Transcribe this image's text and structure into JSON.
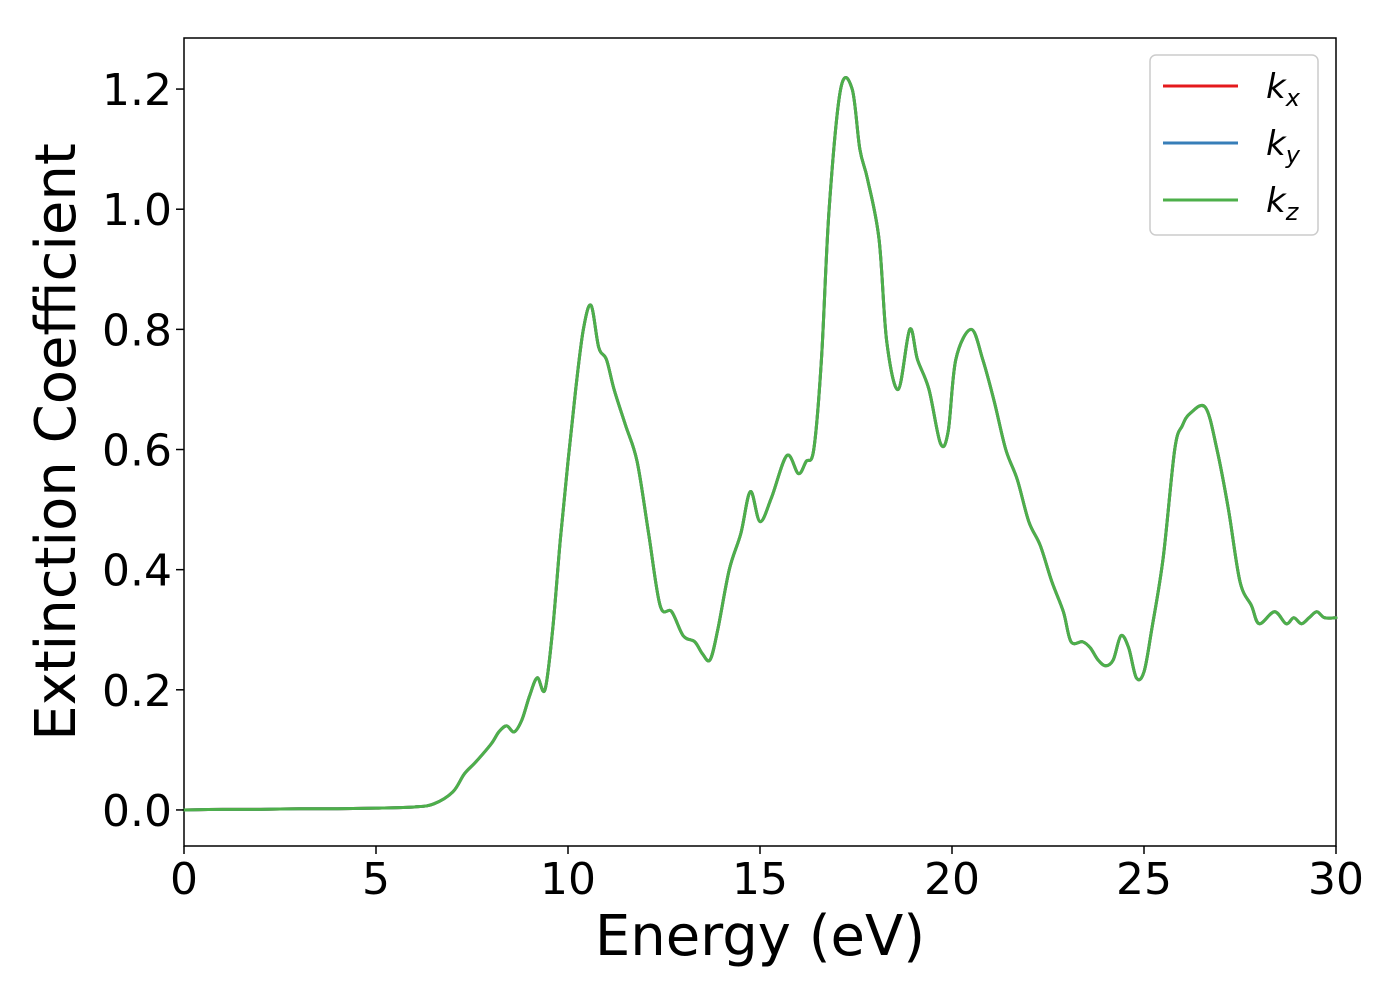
{
  "chart_data": {
    "type": "line",
    "title": "",
    "xlabel": "Energy (eV)",
    "ylabel": "Extinction Coefficient",
    "xlim": [
      0,
      30
    ],
    "ylim": [
      -0.06,
      1.285
    ],
    "xticks": [
      0,
      5,
      10,
      15,
      20,
      25,
      30
    ],
    "xtick_labels": [
      "0",
      "5",
      "10",
      "15",
      "20",
      "25",
      "30"
    ],
    "yticks": [
      0.0,
      0.2,
      0.4,
      0.6,
      0.8,
      1.0,
      1.2
    ],
    "ytick_labels": [
      "0.0",
      "0.2",
      "0.4",
      "0.6",
      "0.8",
      "1.0",
      "1.2"
    ],
    "grid": false,
    "legend_position": "top-right",
    "x": [
      0,
      1,
      2,
      3,
      4,
      5,
      6,
      6.5,
      7,
      7.3,
      7.6,
      8,
      8.2,
      8.4,
      8.6,
      8.8,
      9,
      9.2,
      9.4,
      9.6,
      9.8,
      10,
      10.2,
      10.4,
      10.6,
      10.8,
      11,
      11.2,
      11.5,
      11.8,
      12.1,
      12.4,
      12.7,
      13,
      13.3,
      13.5,
      13.7,
      13.9,
      14.2,
      14.5,
      14.75,
      15,
      15.3,
      15.7,
      16,
      16.2,
      16.4,
      16.6,
      16.8,
      17.1,
      17.4,
      17.6,
      17.8,
      18.1,
      18.3,
      18.6,
      18.9,
      19.1,
      19.4,
      19.7,
      19.9,
      20.1,
      20.5,
      20.8,
      21.1,
      21.4,
      21.7,
      22.0,
      22.3,
      22.6,
      22.9,
      23.1,
      23.4,
      23.6,
      23.8,
      24.0,
      24.2,
      24.4,
      24.6,
      24.8,
      25.0,
      25.2,
      25.5,
      25.8,
      26.0,
      26.2,
      26.6,
      26.9,
      27.2,
      27.5,
      27.8,
      28.0,
      28.4,
      28.7,
      28.9,
      29.1,
      29.3,
      29.5,
      29.7,
      30
    ],
    "series": [
      {
        "name": "k_x",
        "color": "#e41a1c",
        "values": [
          0,
          0.001,
          0.001,
          0.002,
          0.002,
          0.003,
          0.005,
          0.01,
          0.03,
          0.06,
          0.08,
          0.11,
          0.13,
          0.14,
          0.13,
          0.15,
          0.19,
          0.22,
          0.2,
          0.3,
          0.45,
          0.58,
          0.7,
          0.8,
          0.84,
          0.77,
          0.75,
          0.7,
          0.64,
          0.58,
          0.46,
          0.34,
          0.33,
          0.29,
          0.28,
          0.26,
          0.25,
          0.3,
          0.4,
          0.46,
          0.53,
          0.48,
          0.52,
          0.59,
          0.56,
          0.58,
          0.6,
          0.75,
          1.0,
          1.2,
          1.2,
          1.1,
          1.05,
          0.95,
          0.78,
          0.7,
          0.8,
          0.75,
          0.7,
          0.61,
          0.63,
          0.75,
          0.8,
          0.75,
          0.68,
          0.6,
          0.55,
          0.48,
          0.44,
          0.38,
          0.33,
          0.28,
          0.28,
          0.27,
          0.25,
          0.24,
          0.25,
          0.29,
          0.27,
          0.22,
          0.23,
          0.3,
          0.42,
          0.6,
          0.64,
          0.66,
          0.67,
          0.6,
          0.5,
          0.38,
          0.34,
          0.31,
          0.33,
          0.31,
          0.32,
          0.31,
          0.32,
          0.33,
          0.32,
          0.32
        ]
      },
      {
        "name": "k_y",
        "color": "#377eb8",
        "values": [
          0,
          0.001,
          0.001,
          0.002,
          0.002,
          0.003,
          0.005,
          0.01,
          0.03,
          0.06,
          0.08,
          0.11,
          0.13,
          0.14,
          0.13,
          0.15,
          0.19,
          0.22,
          0.2,
          0.3,
          0.45,
          0.58,
          0.7,
          0.8,
          0.84,
          0.77,
          0.75,
          0.7,
          0.64,
          0.58,
          0.46,
          0.34,
          0.33,
          0.29,
          0.28,
          0.26,
          0.25,
          0.3,
          0.4,
          0.46,
          0.53,
          0.48,
          0.52,
          0.59,
          0.56,
          0.58,
          0.6,
          0.75,
          1.0,
          1.2,
          1.2,
          1.1,
          1.05,
          0.95,
          0.78,
          0.7,
          0.8,
          0.75,
          0.7,
          0.61,
          0.63,
          0.75,
          0.8,
          0.75,
          0.68,
          0.6,
          0.55,
          0.48,
          0.44,
          0.38,
          0.33,
          0.28,
          0.28,
          0.27,
          0.25,
          0.24,
          0.25,
          0.29,
          0.27,
          0.22,
          0.23,
          0.3,
          0.42,
          0.6,
          0.64,
          0.66,
          0.67,
          0.6,
          0.5,
          0.38,
          0.34,
          0.31,
          0.33,
          0.31,
          0.32,
          0.31,
          0.32,
          0.33,
          0.32,
          0.32
        ]
      },
      {
        "name": "k_z",
        "color": "#4daf4a",
        "values": [
          0,
          0.001,
          0.001,
          0.002,
          0.002,
          0.003,
          0.005,
          0.01,
          0.03,
          0.06,
          0.08,
          0.11,
          0.13,
          0.14,
          0.13,
          0.15,
          0.19,
          0.22,
          0.2,
          0.3,
          0.45,
          0.58,
          0.7,
          0.8,
          0.84,
          0.77,
          0.75,
          0.7,
          0.64,
          0.58,
          0.46,
          0.34,
          0.33,
          0.29,
          0.28,
          0.26,
          0.25,
          0.3,
          0.4,
          0.46,
          0.53,
          0.48,
          0.52,
          0.59,
          0.56,
          0.58,
          0.6,
          0.75,
          1.0,
          1.2,
          1.2,
          1.1,
          1.05,
          0.95,
          0.78,
          0.7,
          0.8,
          0.75,
          0.7,
          0.61,
          0.63,
          0.75,
          0.8,
          0.75,
          0.68,
          0.6,
          0.55,
          0.48,
          0.44,
          0.38,
          0.33,
          0.28,
          0.28,
          0.27,
          0.25,
          0.24,
          0.25,
          0.29,
          0.27,
          0.22,
          0.23,
          0.3,
          0.42,
          0.6,
          0.64,
          0.66,
          0.67,
          0.6,
          0.5,
          0.38,
          0.34,
          0.31,
          0.33,
          0.31,
          0.32,
          0.31,
          0.32,
          0.33,
          0.32,
          0.32
        ]
      }
    ],
    "legend": [
      {
        "base": "k",
        "sub": "x",
        "color": "#e41a1c"
      },
      {
        "base": "k",
        "sub": "y",
        "color": "#377eb8"
      },
      {
        "base": "k",
        "sub": "z",
        "color": "#4daf4a"
      }
    ]
  }
}
